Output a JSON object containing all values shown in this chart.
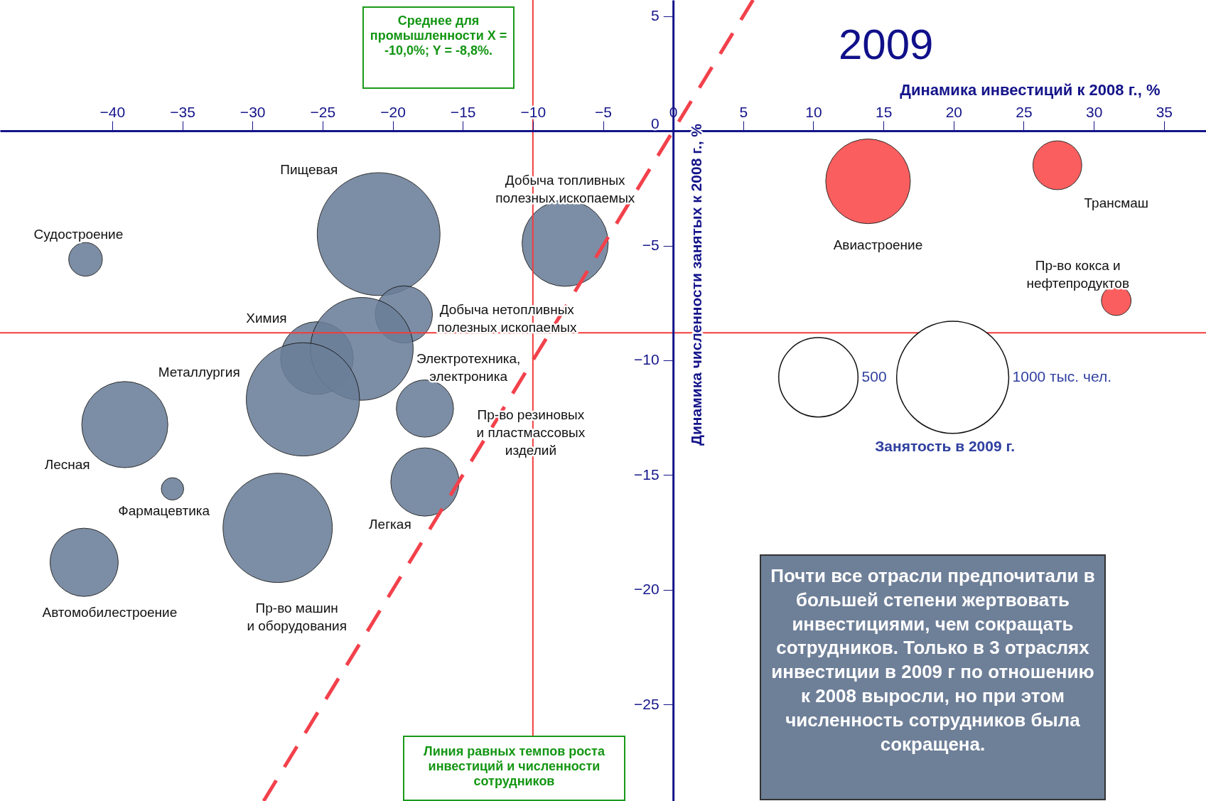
{
  "chart_data": {
    "type": "bubble",
    "title": "2009",
    "xlabel": "Динамика инвестиций к 2008 г., %",
    "ylabel": "Динамика численности занятых к 2008 г., %",
    "legend_title": "Занятость в 2009 г.",
    "legend": "right",
    "grid": false,
    "xlim": [
      -48,
      38
    ],
    "ylim": [
      -29.2,
      5.7
    ],
    "xticks": [
      -40,
      -35,
      -30,
      -25,
      -20,
      -15,
      -10,
      -5,
      0,
      5,
      10,
      15,
      20,
      25,
      30,
      35
    ],
    "yticks": [
      -25,
      -20,
      -15,
      -10,
      -5,
      0,
      5
    ],
    "size_legend": [
      {
        "value": 500,
        "label": "500"
      },
      {
        "value": 1000,
        "label": "1000 тыс. чел."
      }
    ],
    "series": [
      {
        "name": "Пищевая",
        "color": "#6b7f99",
        "x": [
          -21.0
        ],
        "values": [
          -4.5
        ],
        "sizes": [
          1200
        ]
      },
      {
        "name": "Судостроение",
        "color": "#6b7f99",
        "x": [
          -41.9
        ],
        "values": [
          -5.6
        ],
        "sizes": [
          90
        ]
      },
      {
        "name": "Добыча топливных полезных ископаемых",
        "color": "#6b7f99",
        "x": [
          -7.7
        ],
        "values": [
          -4.9
        ],
        "sizes": [
          590
        ]
      },
      {
        "name": "Добыча нетопливных полезных ископаемых",
        "color": "#6b7f99",
        "x": [
          -19.2
        ],
        "values": [
          -8.0
        ],
        "sizes": [
          260
        ]
      },
      {
        "name": "Химия",
        "color": "#6b7f99",
        "x": [
          -25.4
        ],
        "values": [
          -9.9
        ],
        "sizes": [
          420
        ]
      },
      {
        "name": "Электротехника, электроника",
        "color": "#6b7f99",
        "x": [
          -22.2
        ],
        "values": [
          -9.5
        ],
        "sizes": [
          840
        ]
      },
      {
        "name": "Металлургия",
        "color": "#6b7f99",
        "x": [
          -26.4
        ],
        "values": [
          -11.7
        ],
        "sizes": [
          1020
        ]
      },
      {
        "name": "Пр-во резиновых и пластмассовых изделий",
        "color": "#6b7f99",
        "x": [
          -17.7
        ],
        "values": [
          -12.1
        ],
        "sizes": [
          260
        ]
      },
      {
        "name": "Лесная",
        "color": "#6b7f99",
        "x": [
          -39.1
        ],
        "values": [
          -12.8
        ],
        "sizes": [
          590
        ]
      },
      {
        "name": "Фармацевтика",
        "color": "#6b7f99",
        "x": [
          -35.7
        ],
        "values": [
          -15.6
        ],
        "sizes": [
          40
        ]
      },
      {
        "name": "Легкая",
        "color": "#6b7f99",
        "x": [
          -17.7
        ],
        "values": [
          -15.3
        ],
        "sizes": [
          370
        ]
      },
      {
        "name": "Пр-во машин и оборудования",
        "color": "#6b7f99",
        "x": [
          -28.2
        ],
        "values": [
          -17.3
        ],
        "sizes": [
          950
        ]
      },
      {
        "name": "Автомобилестроение",
        "color": "#6b7f99",
        "x": [
          -42.0
        ],
        "values": [
          -18.8
        ],
        "sizes": [
          370
        ]
      },
      {
        "name": "Авиастроение",
        "color": "#fa4848",
        "x": [
          13.9
        ],
        "values": [
          -2.2
        ],
        "sizes": [
          570
        ]
      },
      {
        "name": "Трансмаш",
        "color": "#fa4848",
        "x": [
          27.4
        ],
        "values": [
          -1.5
        ],
        "sizes": [
          190
        ]
      },
      {
        "name": "Пр-во кокса и нефтепродуктов",
        "color": "#fa4848",
        "x": [
          31.6
        ],
        "values": [
          -7.4
        ],
        "sizes": [
          70
        ]
      },
      {
        "type": "line",
        "color": "#f2414b",
        "line_style": "dashed",
        "x": [
          -29.2,
          5.7
        ],
        "values": [
          -29.2,
          5.7
        ]
      }
    ],
    "ref_lines": [
      {
        "axis": "x",
        "value": -10,
        "color": "#f23c3c"
      },
      {
        "axis": "y",
        "value": -8.8,
        "color": "#f23c3c"
      }
    ],
    "annotations": [
      "Среднее для промышленности X = -10,0%; Y = -8,8%.",
      "Линия равных темпов роста инвестиций и численности сотрудников",
      "Почти все отрасли предпочитали в большей степени жертвовать инвестициями, чем сокращать сотрудников. Только в 3 отраслях инвестиции в 2009 г по отношению к 2008 выросли, но при этом численность сотрудников была сокращена."
    ]
  }
}
